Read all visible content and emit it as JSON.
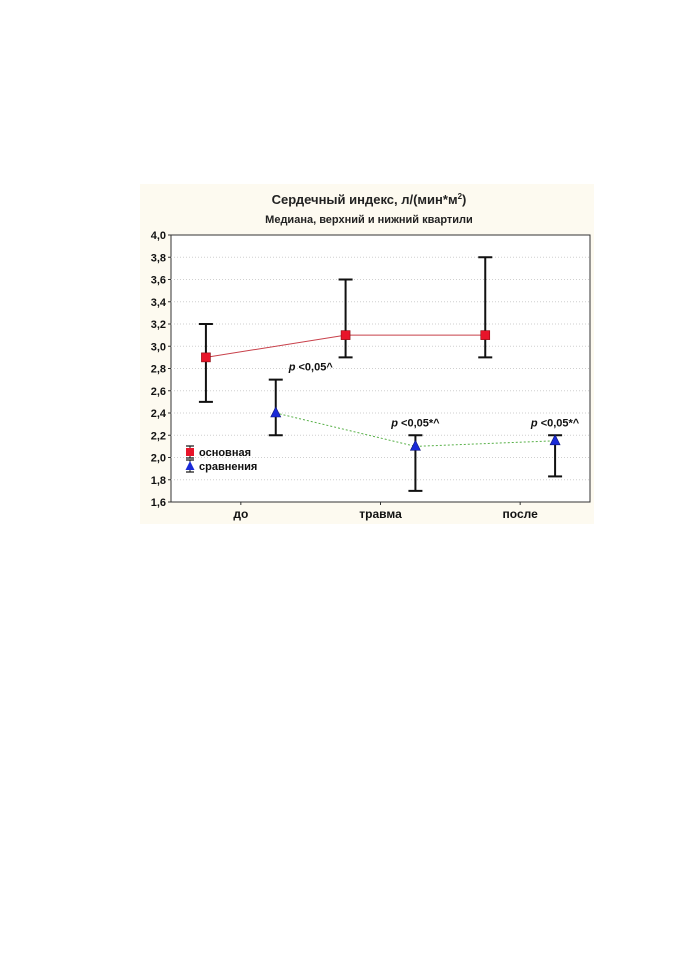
{
  "chart_data": {
    "type": "line",
    "title": "Сердечный индекс, л/(мин*м",
    "title_sup": "2",
    "title_tail": ")",
    "subtitle": "Медиана, верхний и нижний квартили",
    "categories": [
      "до",
      "травма",
      "после"
    ],
    "ylim": [
      1.6,
      4.0
    ],
    "yticks": [
      "1,6",
      "1,8",
      "2,0",
      "2,2",
      "2,4",
      "2,6",
      "2,8",
      "3,0",
      "3,2",
      "3,4",
      "3,6",
      "3,8",
      "4,0"
    ],
    "grid": true,
    "legend_placement": "left",
    "series": [
      {
        "name": "основная",
        "marker": "square",
        "color": "#e8152a",
        "line_color": "#c8404a",
        "line_style": "solid",
        "offset": -0.25,
        "median": [
          2.9,
          3.1,
          3.1
        ],
        "q1": [
          2.5,
          2.9,
          2.9
        ],
        "q3": [
          3.2,
          3.6,
          3.8
        ]
      },
      {
        "name": "сравнения",
        "marker": "triangle",
        "color": "#1a2ad8",
        "line_color": "#58b048",
        "line_style": "dotted",
        "offset": 0.25,
        "median": [
          2.4,
          2.1,
          2.15
        ],
        "q1": [
          2.2,
          1.7,
          1.83
        ],
        "q3": [
          2.7,
          2.2,
          2.2
        ]
      }
    ],
    "annotations": [
      {
        "category_index": 0,
        "series_index": 1,
        "italic": "p",
        "text": " <0,05^"
      },
      {
        "category_index": 1,
        "series_index": 1,
        "italic": "p",
        "text": " <0,05*^"
      },
      {
        "category_index": 2,
        "series_index": 1,
        "italic": "p",
        "text": " <0,05*^"
      }
    ]
  }
}
